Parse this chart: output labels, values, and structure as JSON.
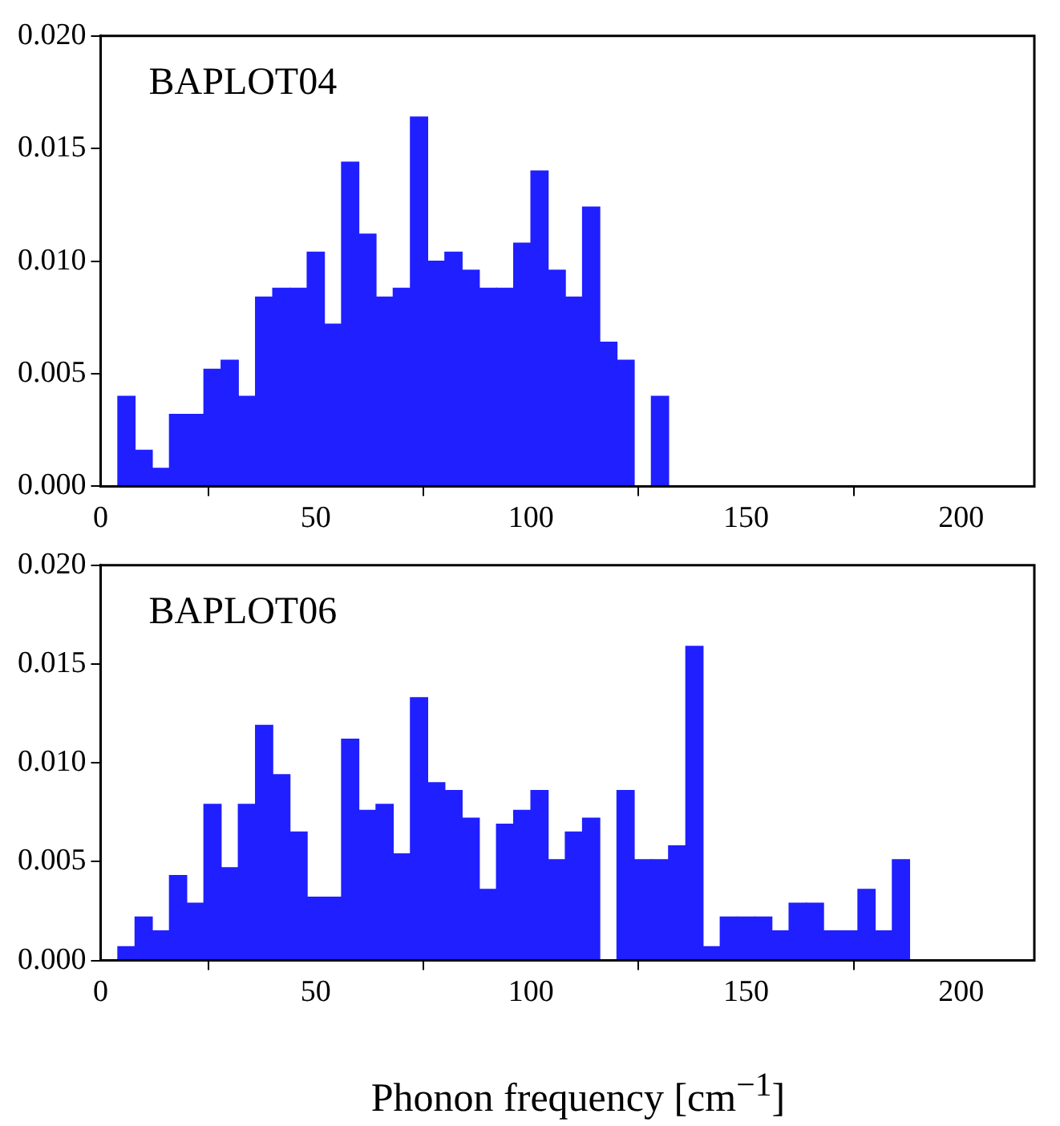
{
  "chart_data": [
    {
      "type": "histogram",
      "annotations": [
        "BAPLOT04"
      ],
      "color": "#1f1fff",
      "bins": [
        4,
        8,
        12,
        16,
        20,
        24,
        28,
        32,
        36,
        40,
        44,
        48,
        52,
        56,
        60,
        64,
        68,
        72,
        76,
        80,
        84,
        88,
        92,
        96,
        100,
        104,
        108,
        112,
        116,
        120,
        124,
        128,
        132
      ],
      "values": [
        0.004,
        0.0016,
        0.0008,
        0.0032,
        0.0032,
        0.0052,
        0.0056,
        0.004,
        0.0084,
        0.0088,
        0.0088,
        0.0104,
        0.0072,
        0.0144,
        0.0112,
        0.0084,
        0.0088,
        0.0164,
        0.01,
        0.0104,
        0.0096,
        0.0088,
        0.0088,
        0.0108,
        0.014,
        0.0096,
        0.0084,
        0.0124,
        0.0064,
        0.0056,
        0,
        0.004
      ],
      "xlim": [
        0,
        217
      ],
      "xticks": [
        0,
        50,
        100,
        150,
        200
      ],
      "ylim": [
        0,
        0.02
      ],
      "yticks": [
        {
          "value": 0,
          "label": "0.000"
        },
        {
          "value": 0.005,
          "label": "0.005"
        },
        {
          "value": 0.01,
          "label": "0.010"
        },
        {
          "value": 0.015,
          "label": "0.015"
        },
        {
          "value": 0.02,
          "label": "0.020"
        }
      ],
      "grid": false
    },
    {
      "type": "histogram",
      "annotations": [
        "BAPLOT06"
      ],
      "xlabel": "Phonon frequency [cm$^{−1}$]",
      "color": "#1f1fff",
      "bins": [
        4,
        8,
        12,
        16,
        20,
        24,
        28,
        32,
        36,
        40,
        44,
        48,
        52,
        56,
        60,
        64,
        68,
        72,
        76,
        80,
        84,
        88,
        92,
        96,
        100,
        104,
        108,
        112,
        116,
        120,
        124,
        128,
        132,
        136,
        140,
        144,
        148,
        152,
        156,
        160,
        164,
        168,
        172,
        176,
        180,
        184,
        188
      ],
      "values": [
        0.0007,
        0.0022,
        0.0015,
        0.0043,
        0.0029,
        0.0079,
        0.0047,
        0.0079,
        0.0119,
        0.0094,
        0.0065,
        0.0032,
        0.0032,
        0.0112,
        0.0076,
        0.0079,
        0.0054,
        0.0133,
        0.009,
        0.0086,
        0.0072,
        0.0036,
        0.0069,
        0.0076,
        0.0086,
        0.0051,
        0.0065,
        0.0072,
        0,
        0.0086,
        0.0051,
        0.0051,
        0.0058,
        0.0159,
        0.0007,
        0.0022,
        0.0022,
        0.0022,
        0.0015,
        0.0029,
        0.0029,
        0.0015,
        0.0015,
        0.0036,
        0.0015,
        0.0051
      ],
      "xlim": [
        0,
        217
      ],
      "xticks": [
        0,
        50,
        100,
        150,
        200
      ],
      "ylim": [
        0,
        0.02
      ],
      "yticks": [
        {
          "value": 0,
          "label": "0.000"
        },
        {
          "value": 0.005,
          "label": "0.005"
        },
        {
          "value": 0.01,
          "label": "0.010"
        },
        {
          "value": 0.015,
          "label": "0.015"
        },
        {
          "value": 0.02,
          "label": "0.020"
        }
      ],
      "grid": false
    }
  ]
}
